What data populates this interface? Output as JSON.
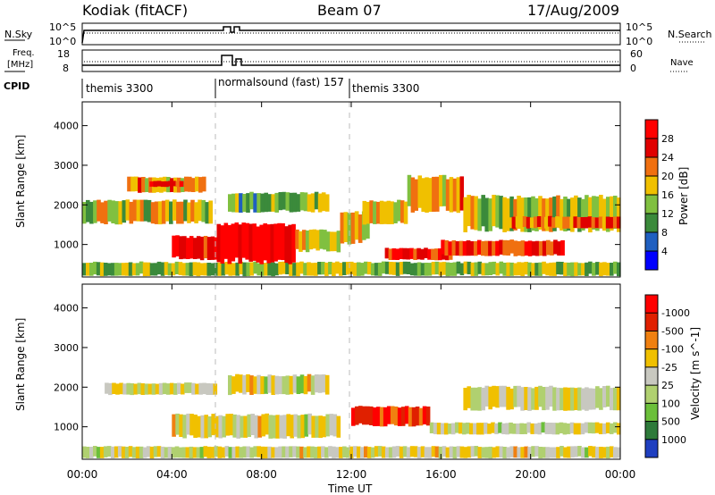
{
  "header": {
    "station": "Kodiak (fitACF)",
    "beam": "Beam 07",
    "date": "17/Aug/2009"
  },
  "strip": {
    "nsky_label": "N.Sky",
    "nsky_ticks": [
      "10^5",
      "10^0"
    ],
    "nsearch_label": "N.Search",
    "nsearch_ticks": [
      "10^5",
      "10^0"
    ],
    "freq_label_1": "Freq.",
    "freq_label_2": "[MHz]",
    "freq_ticks": [
      "18",
      "8"
    ],
    "nave_label": "Nave",
    "nave_ticks": [
      "60",
      "0"
    ],
    "cpid_label": "CPID",
    "cpid_segments": [
      {
        "label": "themis 3300",
        "start_h": 0
      },
      {
        "label": "normalsound (fast) 157",
        "start_h": 6
      },
      {
        "label": "themis 3300",
        "start_h": 12
      }
    ]
  },
  "chart_data": [
    {
      "type": "heatmap",
      "title": "",
      "ylabel": "Slant Range [km]",
      "xlabel": "",
      "xlim_h": [
        0,
        24
      ],
      "ylim_km": [
        180,
        4600
      ],
      "yticks": [
        1000,
        2000,
        3000,
        4000
      ],
      "colorbar_label": "Power [dB]",
      "colorbar_ticks": [
        "4",
        "8",
        "12",
        "16",
        "20",
        "24",
        "28"
      ],
      "colorbar_colors": [
        "#0000ff",
        "#1f5fc0",
        "#3b8a3b",
        "#80c040",
        "#f0c000",
        "#f07010",
        "#e00000",
        "#ff0000"
      ],
      "regions": [
        {
          "t0": 0.0,
          "t1": 24.0,
          "r0": 200,
          "r1": 550,
          "level": 0.45
        },
        {
          "t0": 0.0,
          "t1": 5.8,
          "r0": 1500,
          "r1": 2100,
          "level": 0.5
        },
        {
          "t0": 2.0,
          "t1": 5.5,
          "r0": 2300,
          "r1": 2700,
          "level": 0.6
        },
        {
          "t0": 3.0,
          "t1": 4.5,
          "r0": 2450,
          "r1": 2600,
          "level": 0.9
        },
        {
          "t0": 4.0,
          "t1": 6.2,
          "r0": 600,
          "r1": 1200,
          "level": 0.9
        },
        {
          "t0": 6.0,
          "t1": 9.5,
          "r0": 500,
          "r1": 1500,
          "level": 0.95
        },
        {
          "t0": 9.5,
          "t1": 11.5,
          "r0": 800,
          "r1": 1350,
          "level": 0.55
        },
        {
          "t0": 6.5,
          "t1": 11.0,
          "r0": 1800,
          "r1": 2300,
          "level": 0.4
        },
        {
          "t0": 11.5,
          "t1": 12.8,
          "r0": 1000,
          "r1": 1800,
          "level": 0.5
        },
        {
          "t0": 12.5,
          "t1": 14.5,
          "r0": 1500,
          "r1": 2100,
          "level": 0.55
        },
        {
          "t0": 13.5,
          "t1": 16.5,
          "r0": 600,
          "r1": 900,
          "level": 0.8
        },
        {
          "t0": 14.5,
          "t1": 17.0,
          "r0": 1800,
          "r1": 2700,
          "level": 0.6
        },
        {
          "t0": 16.0,
          "t1": 21.5,
          "r0": 700,
          "r1": 1100,
          "level": 0.8
        },
        {
          "t0": 17.0,
          "t1": 24.0,
          "r0": 1300,
          "r1": 2200,
          "level": 0.5
        },
        {
          "t0": 19.0,
          "t1": 24.0,
          "r0": 1400,
          "r1": 1700,
          "level": 0.7
        }
      ]
    },
    {
      "type": "heatmap",
      "title": "",
      "ylabel": "Slant Range [km]",
      "xlabel": "Time UT",
      "xlim_h": [
        0,
        24
      ],
      "ylim_km": [
        180,
        4600
      ],
      "yticks": [
        1000,
        2000,
        3000,
        4000
      ],
      "xticks": [
        "00:00",
        "04:00",
        "08:00",
        "12:00",
        "16:00",
        "20:00",
        "00:00"
      ],
      "colorbar_label": "Velocity [m s^-1]",
      "colorbar_ticks": [
        "1000",
        "500",
        "100",
        "25",
        "-25",
        "-100",
        "-500",
        "-1000"
      ],
      "colorbar_colors": [
        "#1f3fc0",
        "#2e7a3a",
        "#6bbf3a",
        "#b0d070",
        "#c8c8c0",
        "#f0c000",
        "#f08010",
        "#e02000",
        "#ff0000"
      ],
      "regions": [
        {
          "t0": 0.0,
          "t1": 24.0,
          "r0": 200,
          "r1": 500,
          "level": 0.5
        },
        {
          "t0": 1.0,
          "t1": 6.0,
          "r0": 1800,
          "r1": 2100,
          "level": 0.5
        },
        {
          "t0": 4.0,
          "t1": 11.5,
          "r0": 700,
          "r1": 1300,
          "level": 0.5
        },
        {
          "t0": 6.5,
          "t1": 11.0,
          "r0": 1800,
          "r1": 2300,
          "level": 0.5
        },
        {
          "t0": 12.0,
          "t1": 15.5,
          "r0": 1000,
          "r1": 1500,
          "level": 0.85
        },
        {
          "t0": 15.5,
          "t1": 24.0,
          "r0": 800,
          "r1": 1100,
          "level": 0.5
        },
        {
          "t0": 17.0,
          "t1": 24.0,
          "r0": 1400,
          "r1": 2000,
          "level": 0.5
        }
      ]
    }
  ]
}
